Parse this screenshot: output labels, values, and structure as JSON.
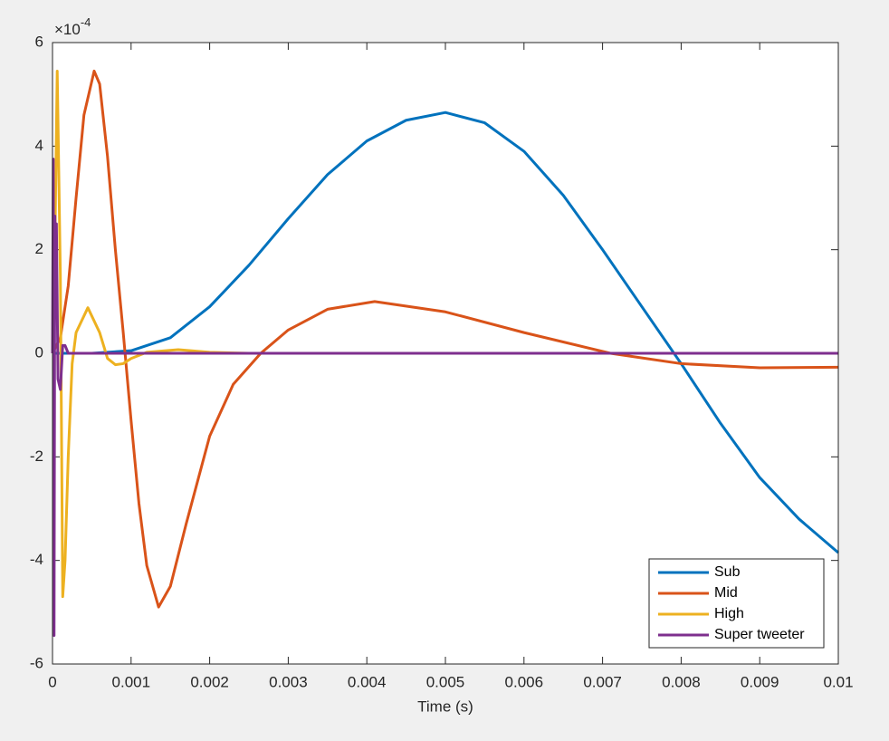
{
  "chart_data": {
    "type": "line",
    "xlabel": "Time (s)",
    "y_multiplier": {
      "base": "×10",
      "exponent": "-4"
    },
    "xlim": [
      0,
      0.01
    ],
    "ylim": [
      -6,
      6
    ],
    "xticks": [
      0,
      0.001,
      0.002,
      0.003,
      0.004,
      0.005,
      0.006,
      0.007,
      0.008,
      0.009,
      0.01
    ],
    "yticks": [
      -6,
      -4,
      -2,
      0,
      2,
      4,
      6
    ],
    "legend": "lower right",
    "series": [
      {
        "name": "Sub",
        "color": "#0072bd",
        "x": [
          0,
          0.0005,
          0.001,
          0.0015,
          0.002,
          0.0025,
          0.003,
          0.0035,
          0.004,
          0.0045,
          0.005,
          0.0055,
          0.006,
          0.0065,
          0.007,
          0.0075,
          0.008,
          0.0085,
          0.009,
          0.0095,
          0.01
        ],
        "values": [
          0,
          0,
          0.05,
          0.3,
          0.9,
          1.7,
          2.6,
          3.45,
          4.1,
          4.5,
          4.65,
          4.45,
          3.9,
          3.05,
          2.0,
          0.9,
          -0.2,
          -1.35,
          -2.4,
          -3.2,
          -3.85
        ]
      },
      {
        "name": "Mid",
        "color": "#d95319",
        "x": [
          0,
          0.0001,
          0.0002,
          0.0003,
          0.0004,
          0.00053,
          0.0006,
          0.0007,
          0.0008,
          0.0009,
          0.001,
          0.0011,
          0.0012,
          0.00135,
          0.0015,
          0.0017,
          0.002,
          0.0023,
          0.00265,
          0.003,
          0.0035,
          0.0041,
          0.005,
          0.006,
          0.0071,
          0.008,
          0.009,
          0.01
        ],
        "values": [
          0,
          0.3,
          1.3,
          3.0,
          4.6,
          5.45,
          5.2,
          3.8,
          2.0,
          0.4,
          -1.3,
          -2.9,
          -4.1,
          -4.9,
          -4.5,
          -3.3,
          -1.6,
          -0.6,
          0,
          0.45,
          0.85,
          1.0,
          0.8,
          0.4,
          0,
          -0.2,
          -0.28,
          -0.27
        ]
      },
      {
        "name": "High",
        "color": "#edb120",
        "x": [
          0,
          3e-05,
          6e-05,
          0.0001,
          0.00013,
          0.00016,
          0.0002,
          0.00025,
          0.0003,
          0.00045,
          0.0006,
          0.0007,
          0.0008,
          0.0009,
          0.001,
          0.0012,
          0.0016,
          0.002,
          0.0025,
          0.01
        ],
        "values": [
          0,
          2,
          5.45,
          1.5,
          -4.7,
          -4.0,
          -2,
          -0.2,
          0.4,
          0.88,
          0.4,
          -0.1,
          -0.22,
          -0.2,
          -0.1,
          0.02,
          0.07,
          0.02,
          0,
          0
        ]
      },
      {
        "name": "Super tweeter",
        "color": "#7e2f8e",
        "x": [
          0,
          1e-05,
          2e-05,
          3e-05,
          4e-05,
          5e-05,
          7e-05,
          0.0001,
          0.00013,
          0.00016,
          0.0002,
          0.01
        ],
        "values": [
          0,
          3.75,
          -5.45,
          2.65,
          1.8,
          2.5,
          -0.5,
          -0.7,
          0.15,
          0.15,
          0,
          0
        ]
      }
    ]
  }
}
